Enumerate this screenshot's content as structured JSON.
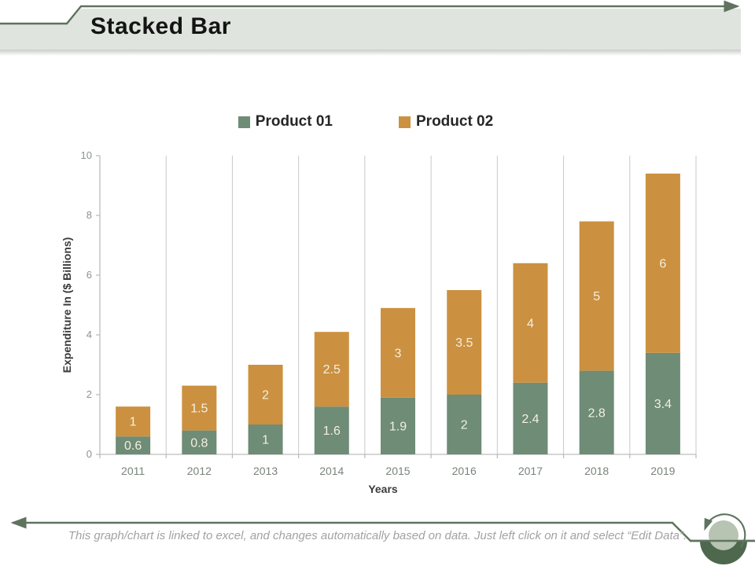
{
  "slide": {
    "title": "Stacked Bar",
    "footer_note": "This graph/chart is linked to excel, and changes automatically based on data.  Just left click on it and select “Edit Data”."
  },
  "colors": {
    "accent_line": "#5f735f",
    "title_band": "#dfe5de",
    "product01_green": "#6e8c76",
    "product02_orange": "#cb9140",
    "data_label": "#f4efdf",
    "gridline": "#c9c9c9",
    "axis_line": "#bdbdbd",
    "circle_icon_light": "#b6c4b1",
    "circle_icon_dark": "#4e684d"
  },
  "chart_data": {
    "type": "bar",
    "stacked": true,
    "title": "",
    "categories": [
      "2011",
      "2012",
      "2013",
      "2014",
      "2015",
      "2016",
      "2017",
      "2018",
      "2019"
    ],
    "series": [
      {
        "name": "Product 01",
        "color": "#6e8c76",
        "values": [
          0.6,
          0.8,
          1,
          1.6,
          1.9,
          2,
          2.4,
          2.8,
          3.4
        ]
      },
      {
        "name": "Product 02",
        "color": "#cb9140",
        "values": [
          1,
          1.5,
          2,
          2.5,
          3,
          3.5,
          4,
          5,
          6
        ]
      }
    ],
    "xlabel": "Years",
    "ylabel": "Expenditure In ($ Billions)",
    "ylim": [
      0,
      10
    ],
    "yticks": [
      0,
      2,
      4,
      6,
      8,
      10
    ],
    "legend_position": "top",
    "gridlines": "vertical",
    "data_labels": true
  }
}
